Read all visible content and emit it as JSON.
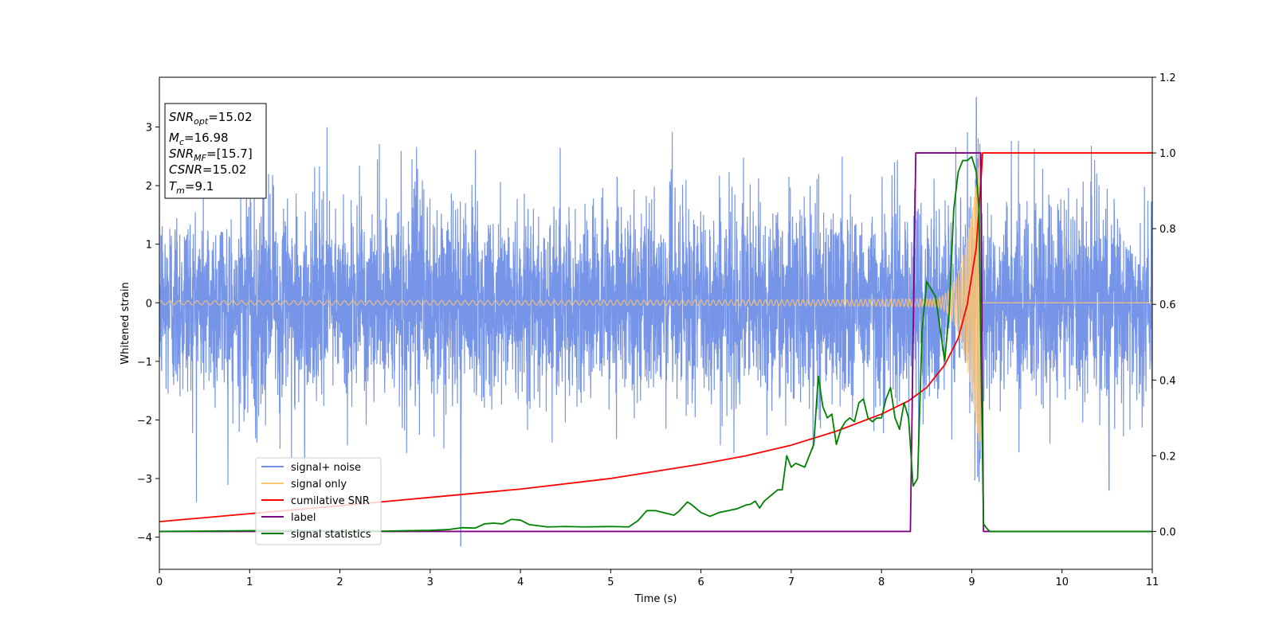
{
  "chart_data": {
    "type": "line",
    "xlabel": "Time (s)",
    "ylabel": "Whitened strain",
    "xlim": [
      0,
      11
    ],
    "ylim": [
      -4.55,
      3.85
    ],
    "y2lim": [
      -0.1,
      1.2
    ],
    "x_ticks": [
      0,
      1,
      2,
      3,
      4,
      5,
      6,
      7,
      8,
      9,
      10,
      11
    ],
    "y_ticks": [
      -4,
      -3,
      -2,
      -1,
      0,
      1,
      2,
      3
    ],
    "y_tick_labels": [
      "−4",
      "−3",
      "−2",
      "−1",
      "0",
      "1",
      "2",
      "3"
    ],
    "y2_ticks": [
      0.0,
      0.2,
      0.4,
      0.6,
      0.8,
      1.0,
      1.2
    ],
    "y2_tick_labels": [
      "0.0",
      "0.2",
      "0.4",
      "0.6",
      "0.8",
      "1.0",
      "1.2"
    ],
    "legend_placement": "lower-left",
    "grid": false,
    "series": [
      {
        "name": "signal+ noise",
        "axis": "left",
        "color": "#6f8fe8",
        "kind": "noise",
        "amplitude_range": [
          -4.15,
          3.5
        ],
        "peaks": [
          {
            "x": 3.34,
            "y": -4.15
          },
          {
            "x": 9.05,
            "y": 3.5
          },
          {
            "x": 9.08,
            "y": -3.05
          },
          {
            "x": 10.52,
            "y": -3.2
          }
        ]
      },
      {
        "name": "signal only",
        "axis": "left",
        "color": "#ffc670",
        "kind": "chirp",
        "merger_time": 9.1,
        "peak_amplitude": 2.7
      },
      {
        "name": "cumilative SNR",
        "axis": "right",
        "color": "#ff0000",
        "kind": "line",
        "x": [
          0,
          1,
          2,
          3,
          4,
          5,
          6,
          6.5,
          7,
          7.5,
          8,
          8.3,
          8.5,
          8.7,
          8.85,
          8.95,
          9.05,
          9.1,
          9.12,
          11
        ],
        "y": [
          0.026,
          0.047,
          0.068,
          0.09,
          0.112,
          0.14,
          0.178,
          0.2,
          0.228,
          0.265,
          0.31,
          0.345,
          0.38,
          0.44,
          0.51,
          0.6,
          0.75,
          0.92,
          1.0,
          1.0
        ]
      },
      {
        "name": "label",
        "axis": "right",
        "color": "#800080",
        "kind": "line",
        "x": [
          0,
          8.32,
          8.38,
          9.1,
          9.13,
          11
        ],
        "y": [
          0,
          0,
          1,
          1,
          0,
          0
        ]
      },
      {
        "name": "signal statistics",
        "axis": "right",
        "color": "#008000",
        "kind": "line",
        "x": [
          0,
          0.5,
          1,
          1.5,
          2,
          2.5,
          3,
          3.2,
          3.35,
          3.5,
          3.6,
          3.7,
          3.8,
          3.9,
          4.0,
          4.1,
          4.3,
          4.5,
          4.7,
          5.0,
          5.2,
          5.3,
          5.4,
          5.5,
          5.7,
          5.75,
          5.85,
          5.9,
          6.0,
          6.1,
          6.2,
          6.3,
          6.4,
          6.5,
          6.55,
          6.6,
          6.65,
          6.7,
          6.8,
          6.85,
          6.9,
          6.95,
          7.0,
          7.05,
          7.15,
          7.2,
          7.25,
          7.3,
          7.35,
          7.4,
          7.45,
          7.5,
          7.55,
          7.6,
          7.65,
          7.7,
          7.75,
          7.8,
          7.85,
          7.9,
          7.95,
          8.0,
          8.05,
          8.1,
          8.15,
          8.2,
          8.25,
          8.3,
          8.35,
          8.4,
          8.45,
          8.5,
          8.6,
          8.7,
          8.75,
          8.8,
          8.85,
          8.9,
          8.95,
          9.0,
          9.05,
          9.08,
          9.1,
          9.13,
          9.16,
          9.2,
          10,
          11
        ],
        "y": [
          0.0,
          0.001,
          0.002,
          0.002,
          0.001,
          0.001,
          0.003,
          0.005,
          0.01,
          0.009,
          0.02,
          0.022,
          0.02,
          0.032,
          0.03,
          0.018,
          0.012,
          0.013,
          0.012,
          0.013,
          0.012,
          0.028,
          0.055,
          0.055,
          0.043,
          0.052,
          0.078,
          0.07,
          0.05,
          0.04,
          0.05,
          0.055,
          0.06,
          0.07,
          0.072,
          0.08,
          0.062,
          0.08,
          0.1,
          0.11,
          0.11,
          0.2,
          0.17,
          0.18,
          0.17,
          0.2,
          0.23,
          0.41,
          0.33,
          0.3,
          0.31,
          0.23,
          0.27,
          0.29,
          0.3,
          0.29,
          0.34,
          0.35,
          0.3,
          0.29,
          0.3,
          0.3,
          0.35,
          0.38,
          0.3,
          0.27,
          0.34,
          0.3,
          0.12,
          0.14,
          0.53,
          0.66,
          0.62,
          0.45,
          0.58,
          0.85,
          0.95,
          0.98,
          0.98,
          0.99,
          0.95,
          0.85,
          0.5,
          0.02,
          0.01,
          0.0,
          0.0,
          0.0
        ]
      }
    ]
  },
  "info_box": {
    "line1_main": "SNR",
    "line1_sub": "opt",
    "line1_value": "=15.02",
    "line2_main": "M",
    "line2_sub": "c",
    "line2_value": "=16.98",
    "line3_main": "SNR",
    "line3_sub": "MF",
    "line3_value": "=[15.7]",
    "line4_main": "CSNR",
    "line4_value": "=15.02",
    "line5_main": "T",
    "line5_sub": "m",
    "line5_value": "=9.1"
  },
  "colors": {
    "noise": "#6f8fe8",
    "signal": "#ffc670",
    "cumulative": "#ff0000",
    "label": "#800080",
    "statistics": "#008000"
  }
}
